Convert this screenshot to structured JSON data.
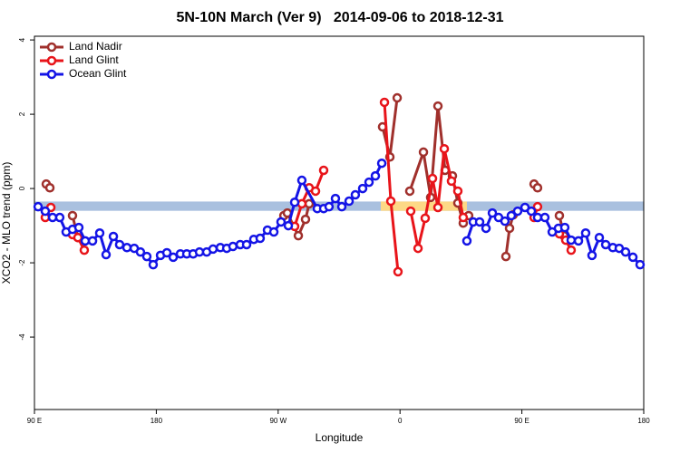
{
  "chart_data": {
    "type": "line",
    "title": "5N-10N March (Ver 9)   2014-09-06 to 2018-12-31",
    "x_label": "Longitude",
    "y_label": "XCO2 - MLO trend (ppm)",
    "xlim": [
      90,
      540
    ],
    "ylim": [
      -5.95,
      4.1
    ],
    "xticks": [
      {
        "value": 90,
        "label": "90 E"
      },
      180,
      {
        "value": 270,
        "label": "90 W"
      },
      {
        "value": 360,
        "label": "0"
      },
      {
        "value": 450,
        "label": "90 E"
      },
      {
        "value": 540,
        "label": "180"
      }
    ],
    "yticks": [
      4,
      2,
      0,
      -2,
      -4
    ],
    "legend": "top-left",
    "band": {
      "ylim": [
        -0.6,
        -0.35
      ],
      "color": "#a9c0df"
    },
    "highlight": {
      "xlim": [
        345.8,
        409.4
      ],
      "color": "#fdd986"
    },
    "series": [
      {
        "name": "Land Nadir",
        "color": "#a0302c",
        "x": [
          98.7,
          101.4,
          105,
          118.1,
          122.1,
          200,
          274.2,
          276.8,
          284.9,
          290.2,
          292.9,
          300,
          347.1,
          352.5,
          357.9,
          361,
          367.2,
          377.3,
          382.6,
          388.0,
          393.3,
          398.7,
          402.7,
          406.7,
          410.7,
          420,
          438.2,
          440.9,
          443.6,
          446,
          459.0,
          461.6,
          465,
          477.7,
          481.1
        ],
        "values": [
          0.12,
          0.02,
          null,
          -0.73,
          -1.32,
          null,
          -0.73,
          -0.66,
          -1.27,
          -0.83,
          -0.41,
          null,
          1.66,
          0.85,
          2.44,
          null,
          -0.07,
          0.98,
          -0.24,
          2.22,
          0.49,
          0.34,
          -0.39,
          -0.93,
          -0.73,
          null,
          -1.83,
          -1.07,
          -0.71,
          null,
          0.12,
          0.02,
          null,
          -0.73,
          -1.27
        ]
      },
      {
        "name": "Land Glint",
        "color": "#e8141a",
        "x": [
          98.0,
          102.1,
          110,
          118.1,
          122.1,
          126.8,
          200,
          282.2,
          287.5,
          292.9,
          297.6,
          303.6,
          330,
          348.5,
          353.2,
          358.5,
          362,
          367.9,
          373.3,
          378.6,
          384.0,
          388.0,
          392.7,
          398.0,
          402.7,
          406.7,
          420,
          459.0,
          461.6,
          470,
          477.7,
          482.4,
          486.4
        ],
        "values": [
          -0.78,
          -0.51,
          null,
          -1.24,
          -1.32,
          -1.66,
          null,
          -1.02,
          -0.41,
          0.02,
          -0.07,
          0.49,
          null,
          2.32,
          -0.34,
          -2.24,
          null,
          -0.61,
          -1.61,
          -0.8,
          0.27,
          -0.51,
          1.07,
          0.2,
          -0.07,
          -0.78,
          null,
          -0.78,
          -0.49,
          null,
          -1.22,
          -1.39,
          -1.66
        ]
      },
      {
        "name": "Ocean Glint",
        "color": "#1414e6",
        "x": [
          92.7,
          98.0,
          103.4,
          108.7,
          113.4,
          118.1,
          122.8,
          127.5,
          132.9,
          138.2,
          142.9,
          148.3,
          152.9,
          158.3,
          163.7,
          168.3,
          173.0,
          177.7,
          183.1,
          187.8,
          192.5,
          197.8,
          202.5,
          207.2,
          211.9,
          217.2,
          221.9,
          227.3,
          232.0,
          236.6,
          242.0,
          246.7,
          252.0,
          256.7,
          262.1,
          266.8,
          272.1,
          277.5,
          282.2,
          287.5,
          298.9,
          303.6,
          307.6,
          312.3,
          317.0,
          322.4,
          327.0,
          332.4,
          337.1,
          341.8,
          346.5,
          380,
          409.4,
          414.1,
          418.8,
          423.5,
          428.2,
          432.8,
          437.5,
          442.2,
          446.9,
          452.3,
          457.0,
          461.6,
          467.0,
          472.4,
          477.0,
          481.7,
          486.4,
          491.8,
          497.1,
          501.8,
          507.2,
          511.9,
          517.2,
          521.9,
          526.6,
          532.0,
          537.3
        ],
        "values": [
          -0.49,
          -0.61,
          -0.78,
          -0.78,
          -1.17,
          -1.1,
          -1.05,
          -1.41,
          -1.41,
          -1.2,
          -1.78,
          -1.29,
          -1.51,
          -1.59,
          -1.61,
          -1.71,
          -1.83,
          -2.05,
          -1.8,
          -1.73,
          -1.85,
          -1.76,
          -1.76,
          -1.76,
          -1.71,
          -1.71,
          -1.63,
          -1.59,
          -1.61,
          -1.56,
          -1.51,
          -1.51,
          -1.37,
          -1.34,
          -1.12,
          -1.17,
          -0.9,
          -1.0,
          -0.37,
          0.22,
          -0.54,
          -0.54,
          -0.49,
          -0.27,
          -0.49,
          -0.34,
          -0.17,
          0,
          0.17,
          0.34,
          0.68,
          null,
          -1.41,
          -0.9,
          -0.9,
          -1.07,
          -0.66,
          -0.78,
          -0.88,
          -0.73,
          -0.61,
          -0.51,
          -0.61,
          -0.78,
          -0.78,
          -1.17,
          -1.07,
          -1.05,
          -1.39,
          -1.41,
          -1.2,
          -1.8,
          -1.32,
          -1.51,
          -1.59,
          -1.61,
          -1.71,
          -1.85,
          -2.05
        ]
      }
    ]
  }
}
